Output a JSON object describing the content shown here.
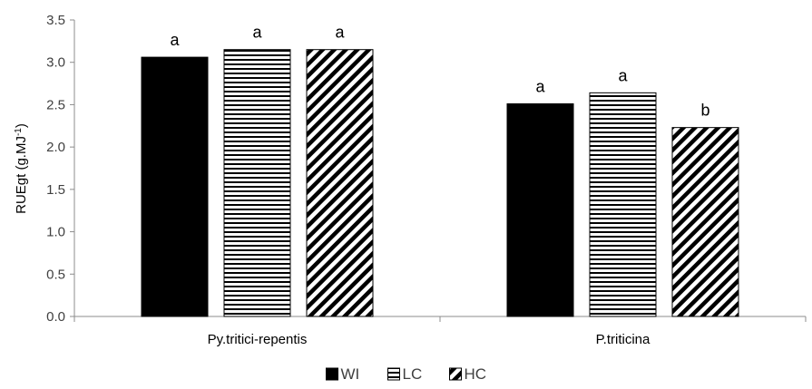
{
  "chart_data": {
    "type": "bar",
    "title": "",
    "xlabel": "",
    "ylabel": {
      "main": "RUEgt (g.MJ",
      "sup": "-1",
      "close": ")"
    },
    "ylim": [
      0,
      3.5
    ],
    "yticks": [
      "0.0",
      "0.5",
      "1.0",
      "1.5",
      "2.0",
      "2.5",
      "3.0",
      "3.5"
    ],
    "ytick_values": [
      0,
      0.5,
      1.0,
      1.5,
      2.0,
      2.5,
      3.0,
      3.5
    ],
    "grid": false,
    "legend": "bottom-center",
    "categories": [
      "Py.tritici-repentis",
      "P.triticina"
    ],
    "series": [
      {
        "name": "WI",
        "fill": "solid",
        "values": [
          3.06,
          2.51
        ],
        "labels": [
          "a",
          "a"
        ]
      },
      {
        "name": "LC",
        "fill": "horizontal-lines",
        "values": [
          3.15,
          2.64
        ],
        "labels": [
          "a",
          "a"
        ]
      },
      {
        "name": "HC",
        "fill": "diagonal-lines",
        "values": [
          3.15,
          2.23
        ],
        "labels": [
          "a",
          "b"
        ]
      }
    ]
  }
}
